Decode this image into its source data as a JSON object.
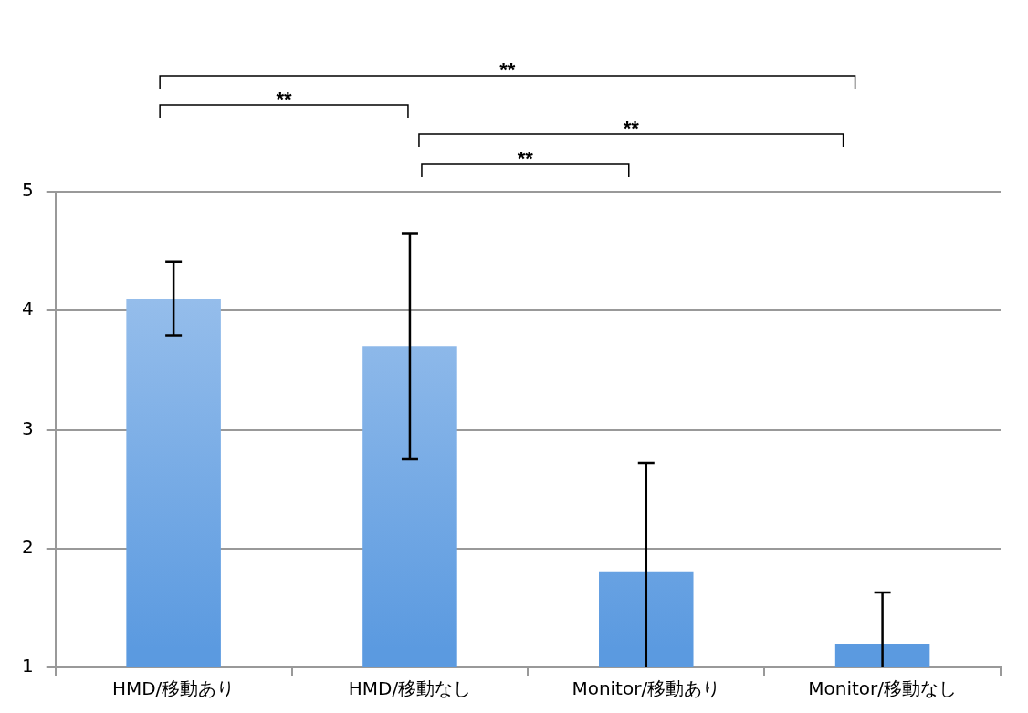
{
  "chart_data": {
    "type": "bar",
    "categories": [
      "HMD/移動あり",
      "HMD/移動なし",
      "Monitor/移動あり",
      "Monitor/移動なし"
    ],
    "values": [
      4.1,
      3.7,
      1.8,
      1.2
    ],
    "color": "#5b9ae0",
    "errors": [
      0.31,
      0.95,
      [
        1,
        2.72
      ],
      [
        1,
        1.63
      ]
    ],
    "ylim": [
      1,
      5
    ],
    "yticks": [
      1,
      2,
      3,
      4,
      5
    ],
    "grid": "y",
    "legend": false,
    "annotations": [
      "**",
      "**",
      "**",
      "**"
    ]
  }
}
